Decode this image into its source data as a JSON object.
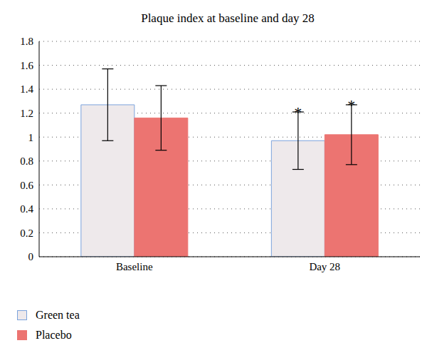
{
  "chart_data": {
    "type": "bar",
    "title": "Plaque index at baseline and day 28",
    "categories": [
      "Baseline",
      "Day 28"
    ],
    "series": [
      {
        "name": "Green tea",
        "color": "#eee9eb",
        "values": [
          1.27,
          0.97
        ],
        "error": [
          0.3,
          0.24
        ]
      },
      {
        "name": "Placebo",
        "color": "#ec7471",
        "values": [
          1.16,
          1.02
        ],
        "error": [
          0.27,
          0.25
        ]
      }
    ],
    "ylim": [
      0,
      1.8
    ],
    "yticks": [
      0,
      0.2,
      0.4,
      0.6,
      0.8,
      1,
      1.2,
      1.4,
      1.6,
      1.8
    ],
    "grid": true,
    "legend": "bottom-left",
    "annotations": [
      {
        "series": "Green tea",
        "category": "Day 28",
        "text": "*"
      },
      {
        "series": "Placebo",
        "category": "Day 28",
        "text": "*"
      }
    ]
  }
}
